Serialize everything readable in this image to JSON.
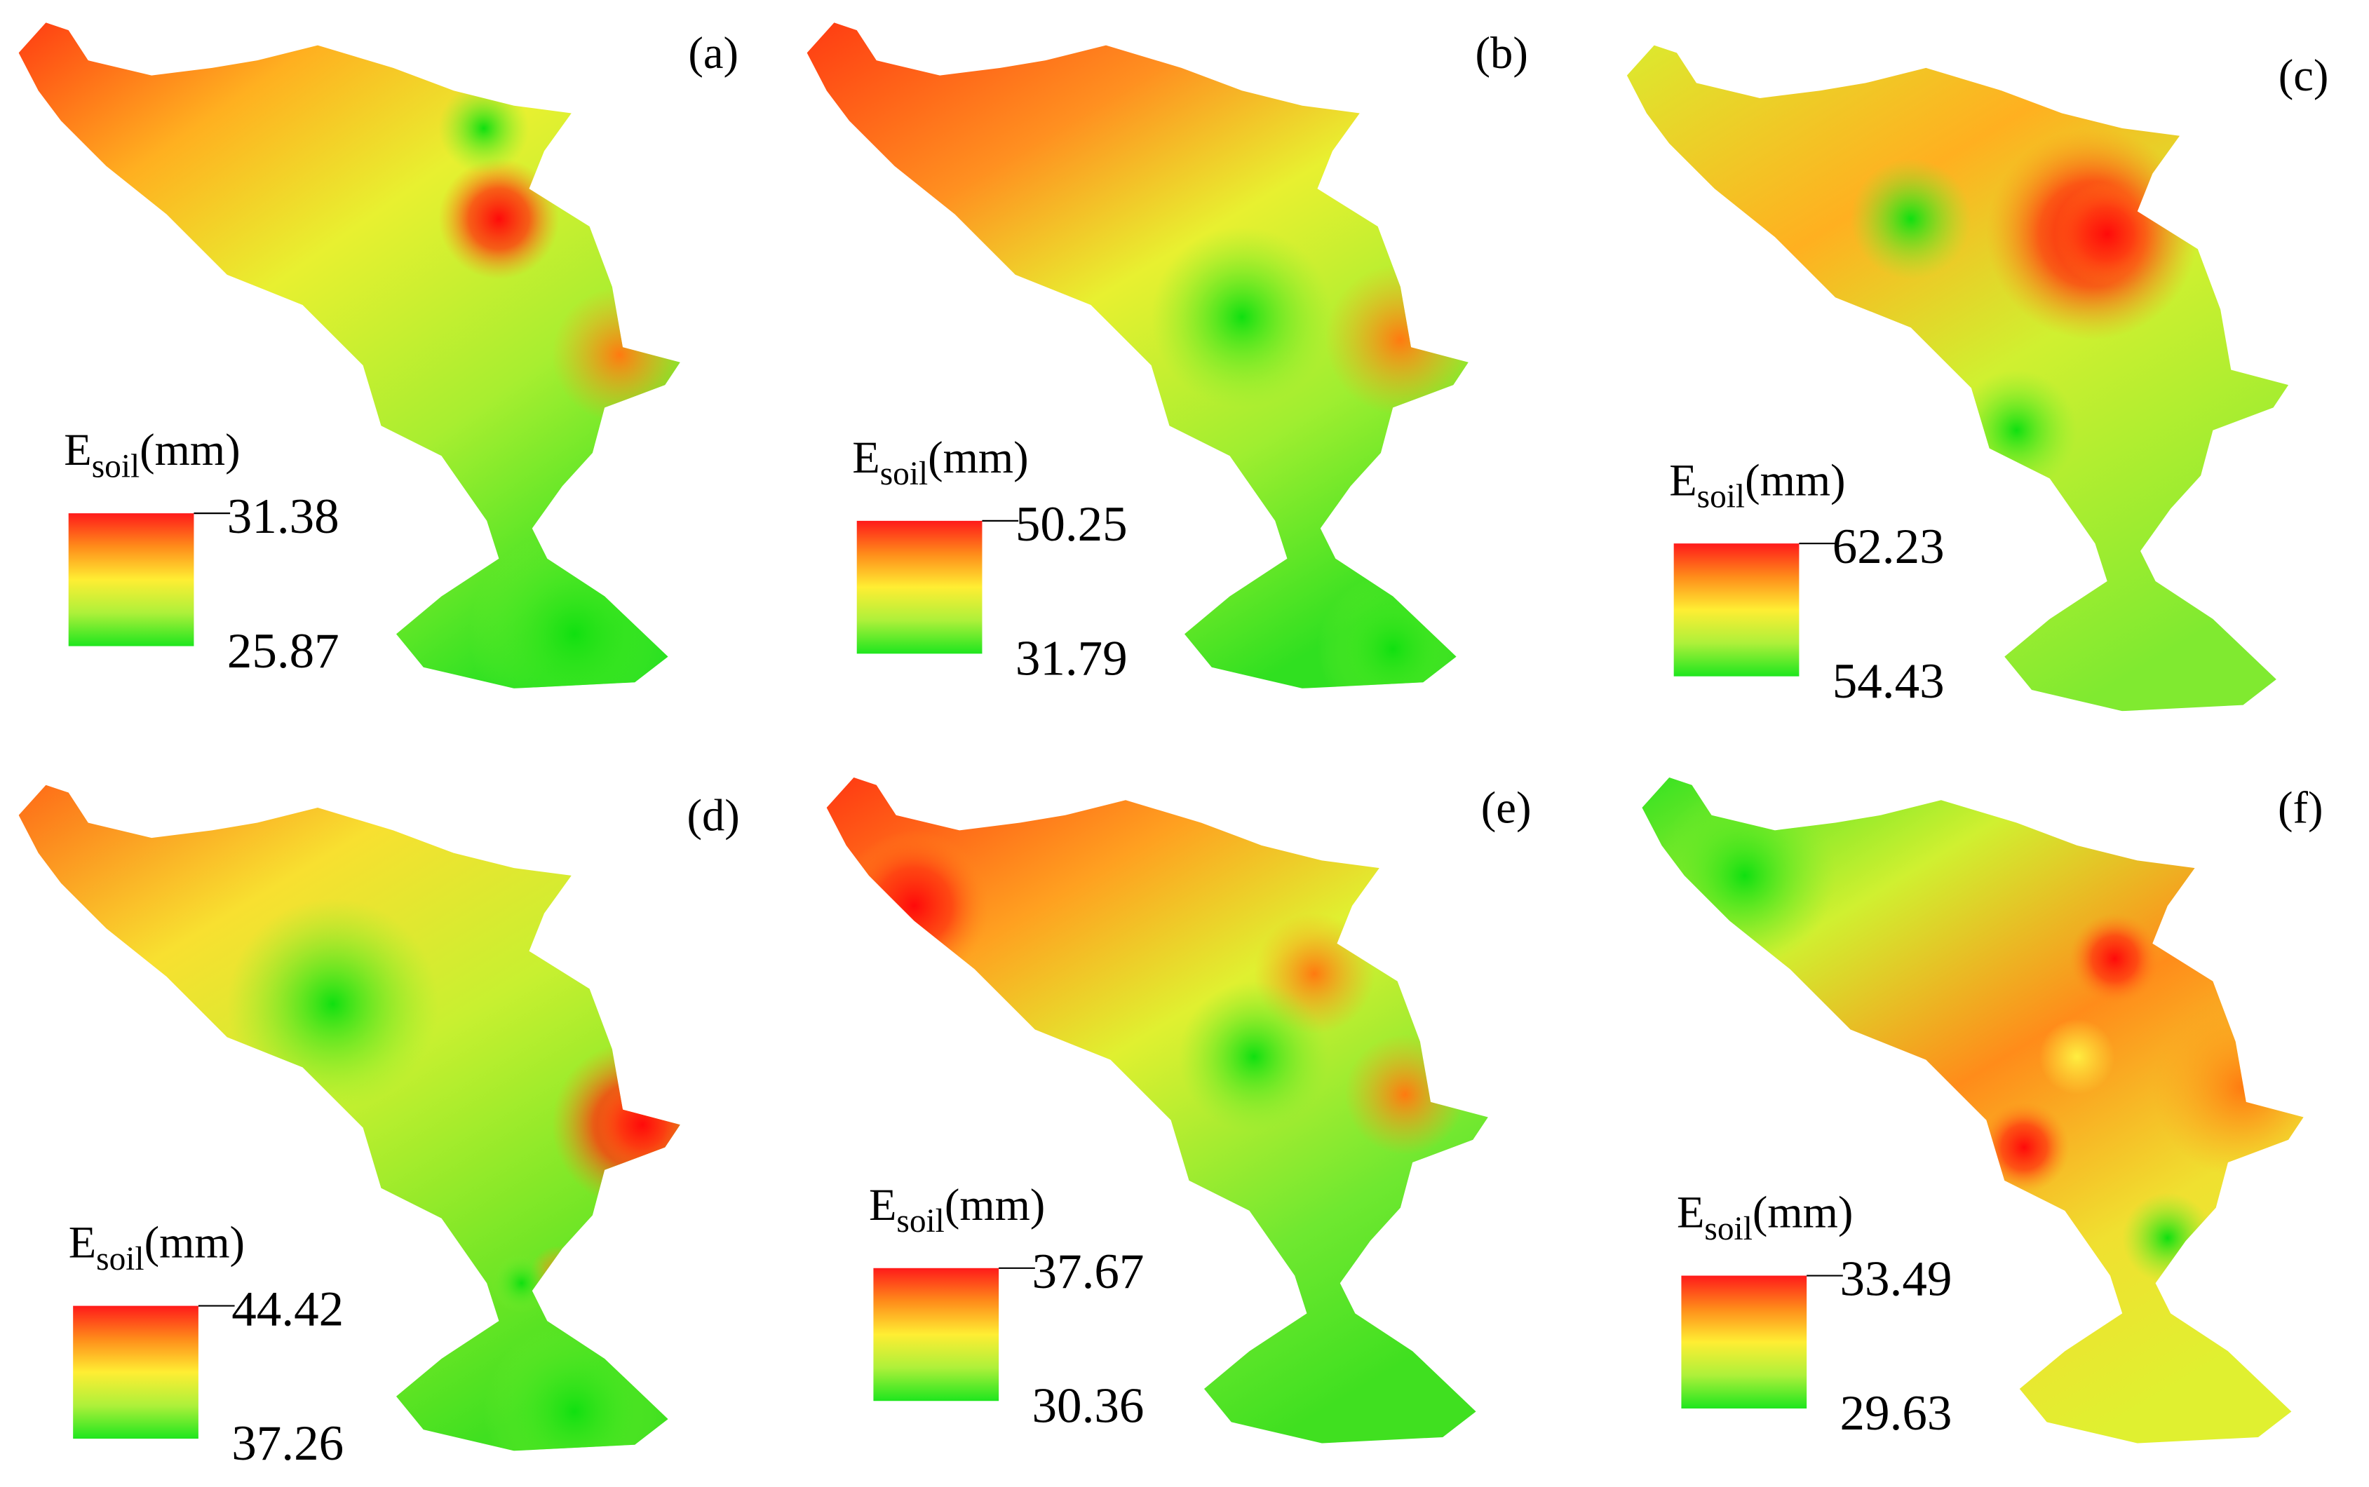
{
  "legend_title": {
    "symbol": "E",
    "subscript": "soil",
    "unit": "(mm)"
  },
  "panels": [
    {
      "label": "(a)",
      "legend": {
        "max": 31.38,
        "min": 25.87
      }
    },
    {
      "label": "(b)",
      "legend": {
        "max": 50.25,
        "min": 31.79
      }
    },
    {
      "label": "(c)",
      "legend": {
        "max": 62.23,
        "min": 54.43
      }
    },
    {
      "label": "(d)",
      "legend": {
        "max": 44.42,
        "min": 37.26
      }
    },
    {
      "label": "(e)",
      "legend": {
        "max": 37.67,
        "min": 30.36
      }
    },
    {
      "label": "(f)",
      "legend": {
        "max": 33.49,
        "min": 29.63
      }
    }
  ]
}
